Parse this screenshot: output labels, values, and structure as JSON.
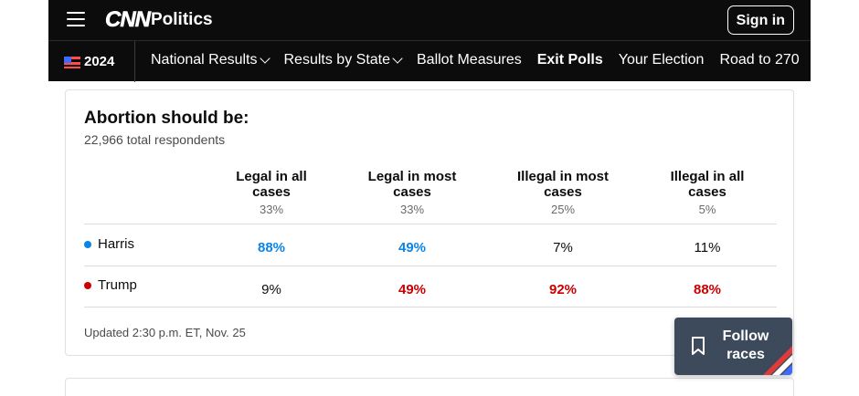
{
  "header": {
    "logo": "CNN",
    "section": "Politics",
    "signin_label": "Sign in"
  },
  "nav": {
    "year": "2024",
    "items": [
      {
        "label": "National Results"
      },
      {
        "label": "Results by State"
      },
      {
        "label": "Ballot Measures"
      },
      {
        "label": "Exit Polls"
      },
      {
        "label": "Your Election"
      },
      {
        "label": "Road to 270"
      }
    ]
  },
  "poll": {
    "title": "Abortion should be:",
    "respondents": "22,966 total respondents",
    "columns": [
      {
        "label": "Legal in all cases",
        "share": "33%"
      },
      {
        "label": "Legal in most cases",
        "share": "33%"
      },
      {
        "label": "Illegal in most cases",
        "share": "25%"
      },
      {
        "label": "Illegal in all cases",
        "share": "5%"
      }
    ],
    "rows": [
      {
        "candidate": "Harris",
        "color": "#0b84e8",
        "values": [
          "88%",
          "49%",
          "7%",
          "11%"
        ]
      },
      {
        "candidate": "Trump",
        "color": "#cc0000",
        "values": [
          "9%",
          "49%",
          "92%",
          "88%"
        ]
      }
    ],
    "updated": "Updated 2:30 p.m. ET, Nov. 25"
  },
  "follow": {
    "line1": "Follow",
    "line2": "races"
  },
  "colors": {
    "harris_blue": "#0b84e8",
    "trump_red": "#cc0000",
    "header_bg": "#0c0c0c",
    "follow_bg": "#3d4a5c"
  }
}
